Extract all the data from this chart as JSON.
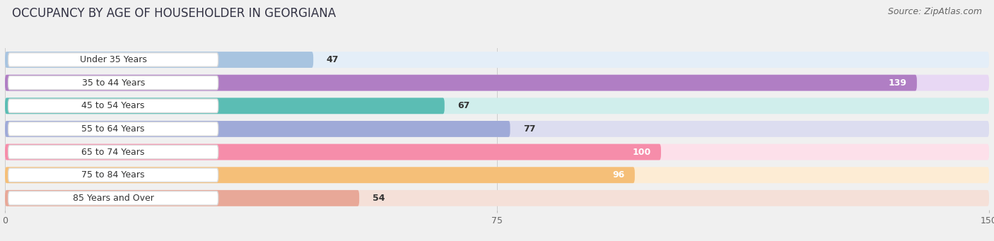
{
  "title": "OCCUPANCY BY AGE OF HOUSEHOLDER IN GEORGIANA",
  "source": "Source: ZipAtlas.com",
  "categories": [
    "Under 35 Years",
    "35 to 44 Years",
    "45 to 54 Years",
    "55 to 64 Years",
    "65 to 74 Years",
    "75 to 84 Years",
    "85 Years and Over"
  ],
  "values": [
    47,
    139,
    67,
    77,
    100,
    96,
    54
  ],
  "bar_colors": [
    "#a8c4e0",
    "#b07ec4",
    "#5bbdb4",
    "#9faad8",
    "#f68daa",
    "#f5bf78",
    "#e8a898"
  ],
  "bar_bg_colors": [
    "#e4eef8",
    "#e8d8f4",
    "#d0eeec",
    "#dcddf0",
    "#fde0ea",
    "#fdecd4",
    "#f5e0d8"
  ],
  "label_pill_colors": [
    "#ddeaf8",
    "#e4d4f4",
    "#c8ece8",
    "#d8daf0",
    "#fcd8e4",
    "#fce4c0",
    "#f4d8d0"
  ],
  "label_border_colors": [
    "#a8c4e0",
    "#b07ec4",
    "#5bbdb4",
    "#9faad8",
    "#f68daa",
    "#f5bf78",
    "#e8a898"
  ],
  "xlim": [
    0,
    150
  ],
  "xticks": [
    0,
    75,
    150
  ],
  "title_fontsize": 12,
  "source_fontsize": 9,
  "label_fontsize": 9,
  "value_fontsize": 9,
  "background_color": "#f0f0f0"
}
